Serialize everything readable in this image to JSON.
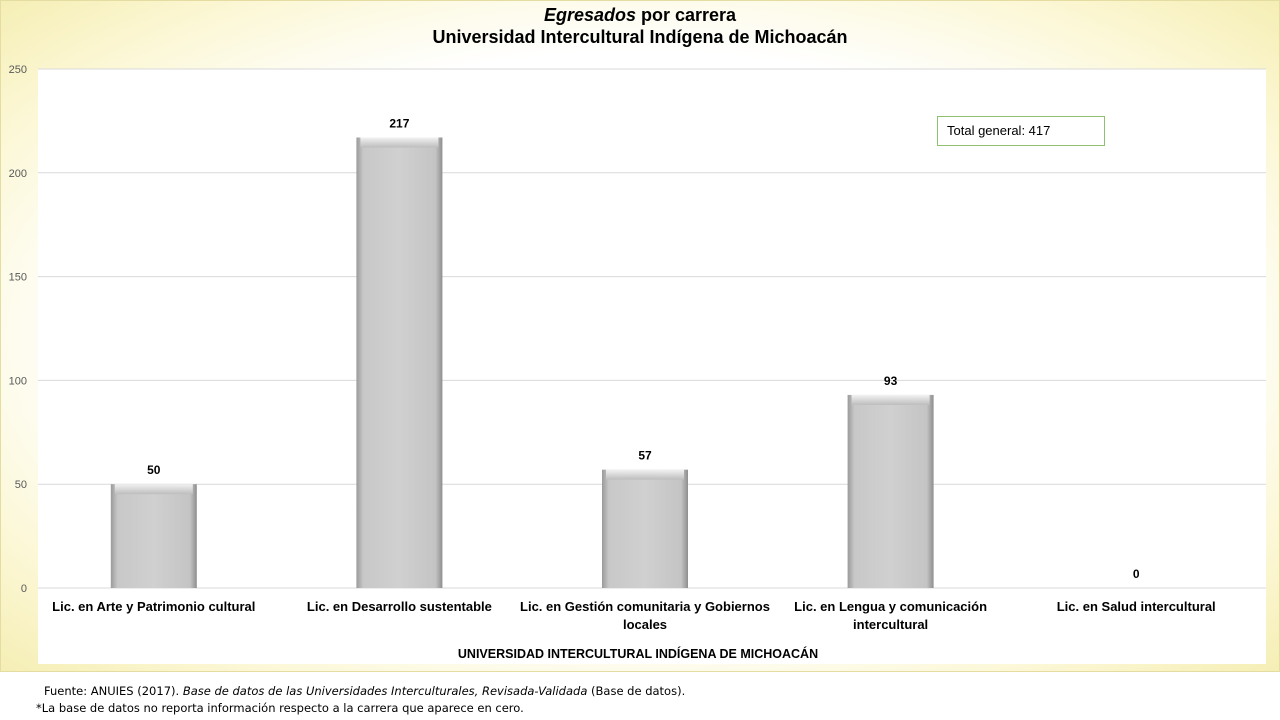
{
  "title": {
    "line1_em": "Egresados",
    "line1_rest": " por carrera",
    "line2": "Universidad Intercultural Indígena de Michoacán"
  },
  "total_box": "Total general: 417",
  "footer": {
    "source_prefix": "Fuente: ANUIES (2017). ",
    "source_italic": "Base de datos de las Universidades Interculturales, Revisada-Validada",
    "source_suffix": " (Base de datos).",
    "note": "*La base de datos no reporta información respecto a la carrera que aparece en cero."
  },
  "colors": {
    "bar": "#cccccc",
    "grid": "#d9d9d9",
    "background_edge": "#f5eeb5",
    "total_border": "#8fbf6f"
  },
  "chart_data": {
    "type": "bar",
    "title": "Egresados por carrera Universidad Intercultural Indígena de Michoacán",
    "categories": [
      [
        "Lic. en Arte y Patrimonio cultural"
      ],
      [
        "Lic. en Desarrollo sustentable"
      ],
      [
        "Lic. en Gestión comunitaria y Gobiernos",
        "locales"
      ],
      [
        "Lic. en Lengua y comunicación",
        "intercultural"
      ],
      [
        "Lic. en Salud intercultural"
      ]
    ],
    "values": [
      50,
      217,
      57,
      93,
      0
    ],
    "xlabel": "UNIVERSIDAD INTERCULTURAL INDÍGENA DE MICHOACÁN",
    "ylabel": "",
    "ylim": [
      0,
      250
    ],
    "yticks": [
      0,
      50,
      100,
      150,
      200,
      250
    ],
    "grid": true,
    "data_labels": true
  }
}
